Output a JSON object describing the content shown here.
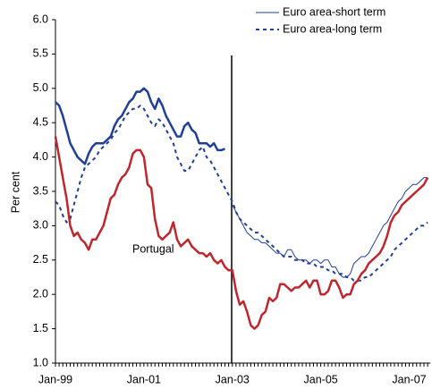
{
  "chart_data": {
    "type": "line",
    "y_label": "Per cent",
    "categories": [
      "Jan-99",
      null,
      null,
      null,
      null,
      null,
      null,
      null,
      null,
      null,
      null,
      null,
      null,
      null,
      null,
      null,
      null,
      null,
      null,
      null,
      null,
      null,
      null,
      null,
      "Jan-01",
      null,
      null,
      null,
      null,
      null,
      null,
      null,
      null,
      null,
      null,
      null,
      null,
      null,
      null,
      null,
      null,
      null,
      null,
      null,
      null,
      null,
      null,
      null,
      "Jan-03",
      null,
      null,
      null,
      null,
      null,
      null,
      null,
      null,
      null,
      null,
      null,
      null,
      null,
      null,
      null,
      null,
      null,
      null,
      null,
      null,
      null,
      null,
      null,
      "Jan-05",
      null,
      null,
      null,
      null,
      null,
      null,
      null,
      null,
      null,
      null,
      null,
      null,
      null,
      null,
      null,
      null,
      null,
      null,
      null,
      null,
      null,
      null,
      null,
      "Jan-07",
      null,
      null,
      null,
      null,
      null
    ],
    "ylim": [
      1,
      6
    ],
    "yticks": [
      {
        "value": 1,
        "label": "1.0"
      },
      1.5,
      {
        "value": 2,
        "label": "2.0"
      },
      2.5,
      {
        "value": 3,
        "label": "3.0"
      },
      3.5,
      {
        "value": 4,
        "label": "4.0"
      },
      4.5,
      {
        "value": 5,
        "label": "5.0"
      },
      5.5,
      {
        "value": 6,
        "label": "6.0"
      }
    ],
    "series": [
      {
        "name": "Euro area-short term",
        "color": "#1f3f99",
        "dashed": false,
        "values": [
          4.8,
          4.75,
          4.6,
          4.4,
          4.2,
          4.1,
          4.0,
          3.95,
          3.9,
          4.05,
          4.15,
          4.2,
          4.2,
          4.2,
          4.25,
          4.3,
          4.45,
          4.55,
          4.6,
          4.7,
          4.8,
          4.85,
          4.95,
          4.95,
          5.0,
          4.95,
          4.8,
          4.7,
          4.85,
          4.75,
          4.6,
          4.5,
          4.4,
          4.3,
          4.3,
          4.45,
          4.5,
          4.4,
          4.35,
          4.2,
          4.2,
          4.2,
          4.15,
          4.2,
          4.1,
          4.1,
          4.12,
          null,
          3.3,
          3.2,
          3.1,
          3.0,
          2.9,
          2.85,
          2.8,
          2.8,
          2.75,
          2.75,
          2.7,
          2.65,
          2.6,
          2.6,
          2.55,
          2.65,
          2.65,
          2.55,
          2.5,
          2.5,
          2.5,
          2.45,
          2.5,
          2.5,
          2.45,
          2.5,
          2.5,
          2.4,
          2.4,
          2.3,
          2.25,
          2.25,
          2.3,
          2.45,
          2.5,
          2.55,
          2.55,
          2.6,
          2.7,
          2.8,
          2.9,
          3.0,
          3.05,
          3.15,
          3.25,
          3.35,
          3.4,
          3.5,
          3.55,
          3.6,
          3.6,
          3.65,
          3.7,
          3.7
        ]
      },
      {
        "name": "Euro area-long term",
        "color": "#1f3f99",
        "dashed": true,
        "values": [
          3.35,
          3.3,
          3.15,
          3.05,
          3.1,
          3.3,
          3.5,
          3.7,
          3.85,
          3.9,
          3.95,
          4.0,
          4.1,
          4.15,
          4.2,
          4.25,
          4.35,
          4.4,
          4.5,
          4.6,
          4.65,
          4.7,
          4.7,
          4.75,
          4.7,
          4.6,
          4.5,
          4.45,
          4.55,
          4.5,
          4.4,
          4.3,
          4.2,
          4.0,
          3.9,
          3.8,
          3.8,
          3.9,
          4.0,
          4.1,
          4.15,
          4.0,
          3.95,
          3.85,
          3.75,
          3.65,
          3.55,
          3.45,
          3.35,
          3.2,
          3.1,
          3.05,
          3.0,
          2.95,
          2.9,
          2.9,
          2.85,
          2.8,
          2.75,
          2.7,
          2.65,
          2.6,
          2.55,
          2.55,
          2.55,
          2.5,
          2.5,
          2.5,
          2.45,
          2.45,
          2.45,
          2.4,
          2.4,
          2.4,
          2.35,
          2.35,
          2.3,
          2.3,
          2.3,
          2.25,
          2.25,
          2.2,
          2.2,
          2.2,
          2.25,
          2.25,
          2.3,
          2.35,
          2.4,
          2.45,
          2.5,
          2.55,
          2.65,
          2.7,
          2.75,
          2.8,
          2.85,
          2.9,
          2.95,
          3.0,
          3.0,
          3.05
        ]
      },
      {
        "name": "Portugal",
        "color": "#c0262d",
        "dashed": false,
        "values": [
          4.3,
          4.0,
          3.7,
          3.4,
          3.0,
          2.85,
          2.9,
          2.8,
          2.75,
          2.65,
          2.8,
          2.8,
          2.9,
          3.0,
          3.2,
          3.4,
          3.45,
          3.6,
          3.7,
          3.75,
          3.85,
          4.05,
          4.1,
          4.1,
          4.0,
          3.6,
          3.55,
          3.1,
          2.85,
          2.8,
          2.85,
          2.9,
          3.05,
          2.8,
          2.7,
          2.75,
          2.8,
          2.7,
          2.65,
          2.6,
          2.6,
          2.55,
          2.6,
          2.5,
          2.45,
          2.5,
          2.4,
          2.35,
          2.35,
          2.05,
          1.85,
          1.9,
          1.75,
          1.55,
          1.5,
          1.55,
          1.7,
          1.75,
          1.95,
          1.9,
          1.95,
          2.15,
          2.15,
          2.1,
          2.05,
          2.1,
          2.1,
          2.15,
          2.2,
          2.1,
          2.2,
          2.2,
          2.0,
          2.0,
          2.05,
          2.2,
          2.2,
          2.1,
          1.95,
          2.0,
          2.0,
          2.15,
          2.2,
          2.3,
          2.35,
          2.45,
          2.5,
          2.55,
          2.6,
          2.7,
          2.85,
          3.05,
          3.15,
          3.2,
          3.3,
          3.35,
          3.4,
          3.45,
          3.5,
          3.55,
          3.6,
          3.7
        ]
      }
    ]
  }
}
